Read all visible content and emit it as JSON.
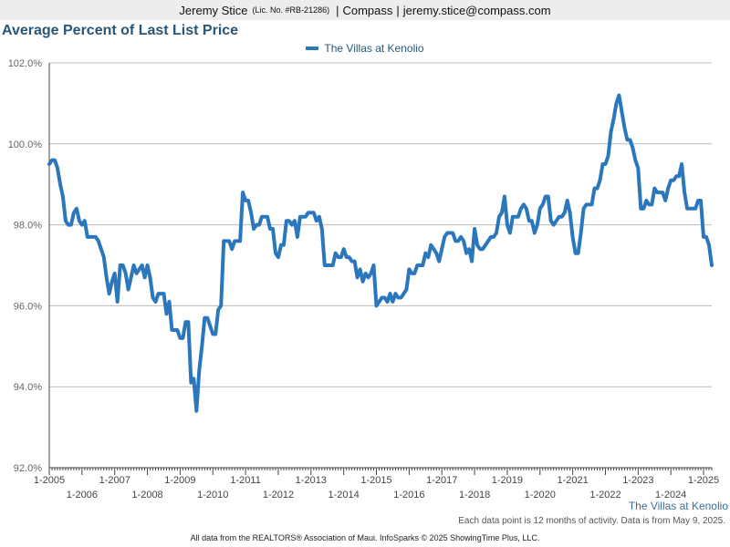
{
  "header": {
    "agent_name": "Jeremy Stice",
    "license": "(Lic. No. #RB-21286)",
    "separator": "|",
    "brokerage": "Compass",
    "email": "jeremy.stice@compass.com"
  },
  "legend_label": "The Villas at Kenolio",
  "corner_label": "The Villas at Kenolio",
  "note": "Each data point is 12 months of activity. Data is from May 9, 2025.",
  "footer": "All data from the REALTORS® Association of Maui. InfoSparks © 2025 ShowingTime Plus, LLC.",
  "colors": {
    "series": "#2a77bd",
    "title": "#2a5576",
    "grid": "#bcbcbc"
  },
  "chart_data": {
    "type": "line",
    "title": "Average Percent of Last List Price",
    "xlabel": "",
    "ylabel": "",
    "ylim": [
      92.0,
      102.0
    ],
    "y_ticks": [
      "92.0%",
      "94.0%",
      "96.0%",
      "98.0%",
      "100.0%",
      "102.0%"
    ],
    "y_tick_values": [
      92,
      94,
      96,
      98,
      100,
      102
    ],
    "x_tick_labels": [
      "1-2005",
      "1-2006",
      "1-2007",
      "1-2008",
      "1-2009",
      "1-2010",
      "1-2011",
      "1-2012",
      "1-2013",
      "1-2014",
      "1-2015",
      "1-2016",
      "1-2017",
      "1-2018",
      "1-2019",
      "1-2020",
      "1-2021",
      "1-2022",
      "1-2023",
      "1-2024",
      "1-2025"
    ],
    "x_tick_values": [
      "2005-01",
      "2006-01",
      "2007-01",
      "2008-01",
      "2009-01",
      "2010-01",
      "2011-01",
      "2012-01",
      "2013-01",
      "2014-01",
      "2015-01",
      "2016-01",
      "2017-01",
      "2018-01",
      "2019-01",
      "2020-01",
      "2021-01",
      "2022-01",
      "2023-01",
      "2024-01",
      "2025-01"
    ],
    "xlim": [
      "2005-01",
      "2025-04"
    ],
    "grid": true,
    "legend": "top-center",
    "series": [
      {
        "name": "The Villas at Kenolio",
        "points": [
          [
            "2005-01",
            99.5
          ],
          [
            "2005-02",
            99.6
          ],
          [
            "2005-03",
            99.6
          ],
          [
            "2005-04",
            99.4
          ],
          [
            "2005-05",
            99.0
          ],
          [
            "2005-06",
            98.7
          ],
          [
            "2005-07",
            98.1
          ],
          [
            "2005-08",
            98.0
          ],
          [
            "2005-09",
            98.0
          ],
          [
            "2005-10",
            98.3
          ],
          [
            "2005-11",
            98.4
          ],
          [
            "2005-12",
            98.1
          ],
          [
            "2006-01",
            98.0
          ],
          [
            "2006-02",
            98.1
          ],
          [
            "2006-03",
            97.7
          ],
          [
            "2006-04",
            97.7
          ],
          [
            "2006-05",
            97.7
          ],
          [
            "2006-06",
            97.7
          ],
          [
            "2006-07",
            97.6
          ],
          [
            "2006-08",
            97.4
          ],
          [
            "2006-09",
            97.2
          ],
          [
            "2006-10",
            96.7
          ],
          [
            "2006-11",
            96.3
          ],
          [
            "2006-12",
            96.6
          ],
          [
            "2007-01",
            96.8
          ],
          [
            "2007-02",
            96.1
          ],
          [
            "2007-03",
            97.0
          ],
          [
            "2007-04",
            97.0
          ],
          [
            "2007-05",
            96.8
          ],
          [
            "2007-06",
            96.4
          ],
          [
            "2007-07",
            96.7
          ],
          [
            "2007-08",
            97.0
          ],
          [
            "2007-09",
            96.8
          ],
          [
            "2007-10",
            96.9
          ],
          [
            "2007-11",
            97.0
          ],
          [
            "2007-12",
            96.7
          ],
          [
            "2008-01",
            97.0
          ],
          [
            "2008-02",
            96.7
          ],
          [
            "2008-03",
            96.2
          ],
          [
            "2008-04",
            96.1
          ],
          [
            "2008-05",
            96.3
          ],
          [
            "2008-06",
            96.3
          ],
          [
            "2008-07",
            96.3
          ],
          [
            "2008-08",
            95.8
          ],
          [
            "2008-09",
            96.1
          ],
          [
            "2008-10",
            95.4
          ],
          [
            "2008-11",
            95.4
          ],
          [
            "2008-12",
            95.4
          ],
          [
            "2009-01",
            95.2
          ],
          [
            "2009-02",
            95.2
          ],
          [
            "2009-03",
            95.6
          ],
          [
            "2009-04",
            95.6
          ],
          [
            "2009-05",
            94.1
          ],
          [
            "2009-06",
            94.2
          ],
          [
            "2009-07",
            93.4
          ],
          [
            "2009-08",
            94.4
          ],
          [
            "2009-09",
            95.0
          ],
          [
            "2009-10",
            95.7
          ],
          [
            "2009-11",
            95.7
          ],
          [
            "2009-12",
            95.5
          ],
          [
            "2010-01",
            95.3
          ],
          [
            "2010-02",
            95.3
          ],
          [
            "2010-03",
            95.9
          ],
          [
            "2010-04",
            96.0
          ],
          [
            "2010-05",
            97.6
          ],
          [
            "2010-06",
            97.6
          ],
          [
            "2010-07",
            97.6
          ],
          [
            "2010-08",
            97.4
          ],
          [
            "2010-09",
            97.6
          ],
          [
            "2010-10",
            97.6
          ],
          [
            "2010-11",
            97.6
          ],
          [
            "2010-12",
            98.8
          ],
          [
            "2011-01",
            98.6
          ],
          [
            "2011-02",
            98.6
          ],
          [
            "2011-03",
            98.3
          ],
          [
            "2011-04",
            97.9
          ],
          [
            "2011-05",
            98.0
          ],
          [
            "2011-06",
            98.0
          ],
          [
            "2011-07",
            98.2
          ],
          [
            "2011-08",
            98.2
          ],
          [
            "2011-09",
            98.2
          ],
          [
            "2011-10",
            97.9
          ],
          [
            "2011-11",
            97.9
          ],
          [
            "2011-12",
            97.3
          ],
          [
            "2012-01",
            97.2
          ],
          [
            "2012-02",
            97.5
          ],
          [
            "2012-03",
            97.5
          ],
          [
            "2012-04",
            98.1
          ],
          [
            "2012-05",
            98.1
          ],
          [
            "2012-06",
            98.0
          ],
          [
            "2012-07",
            98.1
          ],
          [
            "2012-08",
            97.7
          ],
          [
            "2012-09",
            98.2
          ],
          [
            "2012-10",
            98.2
          ],
          [
            "2012-11",
            98.2
          ],
          [
            "2012-12",
            98.3
          ],
          [
            "2013-01",
            98.3
          ],
          [
            "2013-02",
            98.3
          ],
          [
            "2013-03",
            98.1
          ],
          [
            "2013-04",
            98.2
          ],
          [
            "2013-05",
            97.9
          ],
          [
            "2013-06",
            97.0
          ],
          [
            "2013-07",
            97.0
          ],
          [
            "2013-08",
            97.0
          ],
          [
            "2013-09",
            97.0
          ],
          [
            "2013-10",
            97.3
          ],
          [
            "2013-11",
            97.2
          ],
          [
            "2013-12",
            97.2
          ],
          [
            "2014-01",
            97.4
          ],
          [
            "2014-02",
            97.2
          ],
          [
            "2014-03",
            97.2
          ],
          [
            "2014-04",
            97.1
          ],
          [
            "2014-05",
            97.1
          ],
          [
            "2014-06",
            96.7
          ],
          [
            "2014-07",
            96.9
          ],
          [
            "2014-08",
            96.6
          ],
          [
            "2014-09",
            96.8
          ],
          [
            "2014-10",
            96.7
          ],
          [
            "2014-11",
            96.8
          ],
          [
            "2014-12",
            97.0
          ],
          [
            "2015-01",
            96.0
          ],
          [
            "2015-02",
            96.1
          ],
          [
            "2015-03",
            96.2
          ],
          [
            "2015-04",
            96.2
          ],
          [
            "2015-05",
            96.1
          ],
          [
            "2015-06",
            96.3
          ],
          [
            "2015-07",
            96.1
          ],
          [
            "2015-08",
            96.3
          ],
          [
            "2015-09",
            96.2
          ],
          [
            "2015-10",
            96.2
          ],
          [
            "2015-11",
            96.3
          ],
          [
            "2015-12",
            96.4
          ],
          [
            "2016-01",
            96.9
          ],
          [
            "2016-02",
            96.8
          ],
          [
            "2016-03",
            96.8
          ],
          [
            "2016-04",
            97.0
          ],
          [
            "2016-05",
            97.0
          ],
          [
            "2016-06",
            97.0
          ],
          [
            "2016-07",
            97.3
          ],
          [
            "2016-08",
            97.2
          ],
          [
            "2016-09",
            97.5
          ],
          [
            "2016-10",
            97.4
          ],
          [
            "2016-11",
            97.3
          ],
          [
            "2016-12",
            97.1
          ],
          [
            "2017-01",
            97.4
          ],
          [
            "2017-02",
            97.7
          ],
          [
            "2017-03",
            97.8
          ],
          [
            "2017-04",
            97.8
          ],
          [
            "2017-05",
            97.8
          ],
          [
            "2017-06",
            97.6
          ],
          [
            "2017-07",
            97.6
          ],
          [
            "2017-08",
            97.7
          ],
          [
            "2017-09",
            97.6
          ],
          [
            "2017-10",
            97.3
          ],
          [
            "2017-11",
            97.4
          ],
          [
            "2017-12",
            97.1
          ],
          [
            "2018-01",
            97.9
          ],
          [
            "2018-02",
            97.5
          ],
          [
            "2018-03",
            97.4
          ],
          [
            "2018-04",
            97.4
          ],
          [
            "2018-05",
            97.5
          ],
          [
            "2018-06",
            97.6
          ],
          [
            "2018-07",
            97.7
          ],
          [
            "2018-08",
            97.7
          ],
          [
            "2018-09",
            97.8
          ],
          [
            "2018-10",
            98.2
          ],
          [
            "2018-11",
            98.3
          ],
          [
            "2018-12",
            98.7
          ],
          [
            "2019-01",
            98.0
          ],
          [
            "2019-02",
            97.8
          ],
          [
            "2019-03",
            98.2
          ],
          [
            "2019-04",
            98.2
          ],
          [
            "2019-05",
            98.2
          ],
          [
            "2019-06",
            98.4
          ],
          [
            "2019-07",
            98.5
          ],
          [
            "2019-08",
            98.4
          ],
          [
            "2019-09",
            98.1
          ],
          [
            "2019-10",
            98.1
          ],
          [
            "2019-11",
            97.8
          ],
          [
            "2019-12",
            98.0
          ],
          [
            "2020-01",
            98.4
          ],
          [
            "2020-02",
            98.5
          ],
          [
            "2020-03",
            98.7
          ],
          [
            "2020-04",
            98.7
          ],
          [
            "2020-05",
            98.1
          ],
          [
            "2020-06",
            98.0
          ],
          [
            "2020-07",
            98.1
          ],
          [
            "2020-08",
            98.2
          ],
          [
            "2020-09",
            98.2
          ],
          [
            "2020-10",
            98.3
          ],
          [
            "2020-11",
            98.6
          ],
          [
            "2020-12",
            98.3
          ],
          [
            "2021-01",
            97.7
          ],
          [
            "2021-02",
            97.3
          ],
          [
            "2021-03",
            97.3
          ],
          [
            "2021-04",
            97.8
          ],
          [
            "2021-05",
            98.4
          ],
          [
            "2021-06",
            98.5
          ],
          [
            "2021-07",
            98.5
          ],
          [
            "2021-08",
            98.5
          ],
          [
            "2021-09",
            98.9
          ],
          [
            "2021-10",
            98.9
          ],
          [
            "2021-11",
            99.1
          ],
          [
            "2021-12",
            99.5
          ],
          [
            "2022-01",
            99.5
          ],
          [
            "2022-02",
            99.7
          ],
          [
            "2022-03",
            100.3
          ],
          [
            "2022-04",
            100.6
          ],
          [
            "2022-05",
            101.0
          ],
          [
            "2022-06",
            101.2
          ],
          [
            "2022-07",
            100.8
          ],
          [
            "2022-08",
            100.4
          ],
          [
            "2022-09",
            100.1
          ],
          [
            "2022-10",
            100.1
          ],
          [
            "2022-11",
            99.9
          ],
          [
            "2022-12",
            99.6
          ],
          [
            "2023-01",
            99.4
          ],
          [
            "2023-02",
            98.4
          ],
          [
            "2023-03",
            98.4
          ],
          [
            "2023-04",
            98.6
          ],
          [
            "2023-05",
            98.5
          ],
          [
            "2023-06",
            98.5
          ],
          [
            "2023-07",
            98.9
          ],
          [
            "2023-08",
            98.8
          ],
          [
            "2023-09",
            98.8
          ],
          [
            "2023-10",
            98.8
          ],
          [
            "2023-11",
            98.6
          ],
          [
            "2023-12",
            98.9
          ],
          [
            "2024-01",
            99.1
          ],
          [
            "2024-02",
            99.1
          ],
          [
            "2024-03",
            99.2
          ],
          [
            "2024-04",
            99.2
          ],
          [
            "2024-05",
            99.5
          ],
          [
            "2024-06",
            98.8
          ],
          [
            "2024-07",
            98.4
          ],
          [
            "2024-08",
            98.4
          ],
          [
            "2024-09",
            98.4
          ],
          [
            "2024-10",
            98.4
          ],
          [
            "2024-11",
            98.6
          ],
          [
            "2024-12",
            98.6
          ],
          [
            "2025-01",
            97.7
          ],
          [
            "2025-02",
            97.7
          ],
          [
            "2025-03",
            97.5
          ],
          [
            "2025-04",
            97.0
          ]
        ]
      }
    ]
  }
}
